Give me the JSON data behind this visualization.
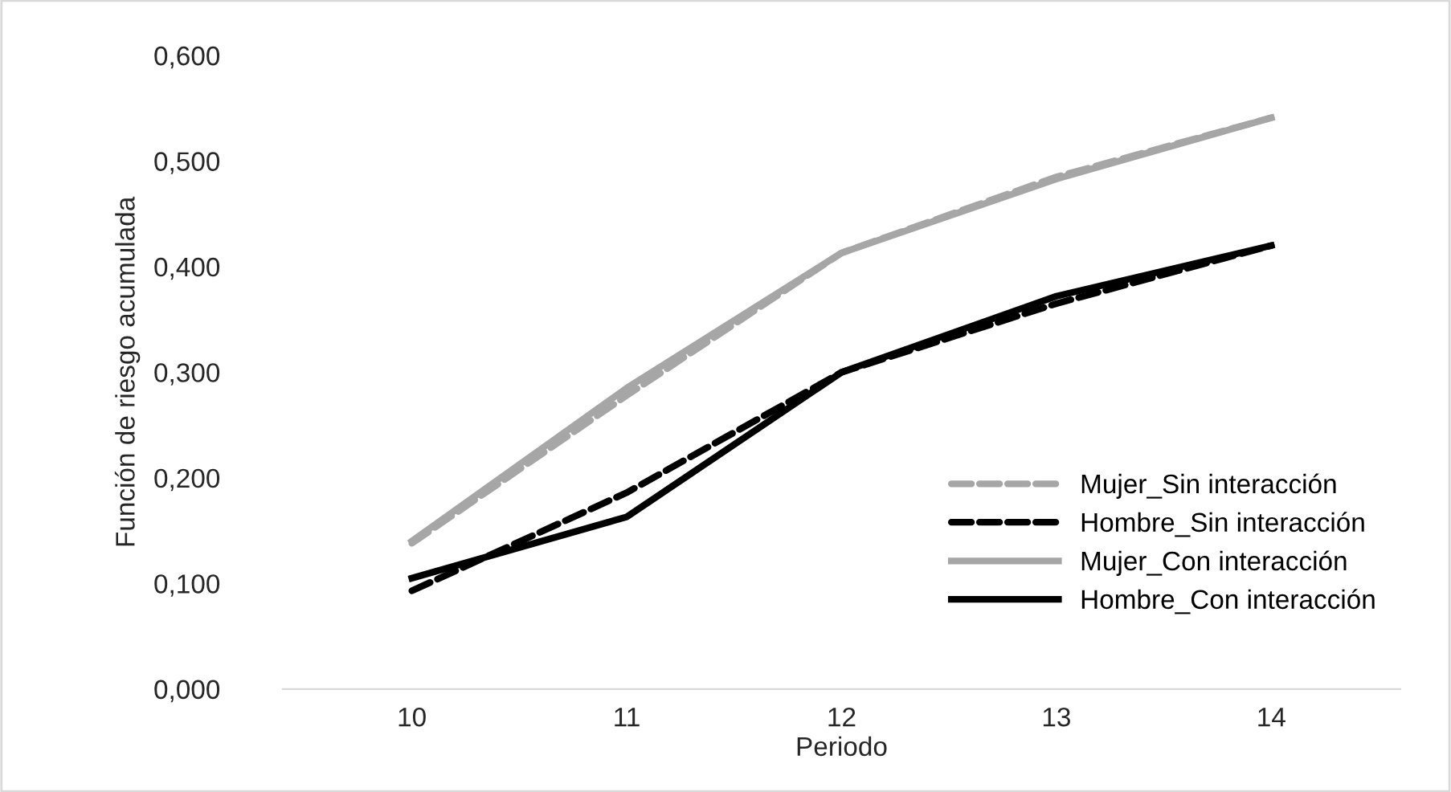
{
  "chart_data": {
    "type": "line",
    "xlabel": "Periodo",
    "ylabel": "Función de riesgo acumulada",
    "categories": [
      "10",
      "11",
      "12",
      "13",
      "14"
    ],
    "series": [
      {
        "name": "Mujer_Sin interacción",
        "color": "#a6a6a6",
        "line_style": "dashed",
        "values": [
          0.138,
          0.278,
          0.413,
          0.485,
          0.541
        ]
      },
      {
        "name": "Hombre_Sin interacción",
        "color": "#000000",
        "line_style": "dashed",
        "values": [
          0.093,
          0.186,
          0.3,
          0.365,
          0.42
        ]
      },
      {
        "name": "Mujer_Con interacción",
        "color": "#a6a6a6",
        "line_style": "solid",
        "values": [
          0.14,
          0.285,
          0.413,
          0.483,
          0.541
        ]
      },
      {
        "name": "Hombre_Con interacción",
        "color": "#000000",
        "line_style": "solid",
        "values": [
          0.105,
          0.163,
          0.3,
          0.372,
          0.42
        ]
      }
    ],
    "ylim": [
      0,
      0.6
    ],
    "yticks": [
      {
        "value": 0,
        "label": "0,000"
      },
      {
        "value": 0.1,
        "label": "0,100"
      },
      {
        "value": 0.2,
        "label": "0,200"
      },
      {
        "value": 0.3,
        "label": "0,300"
      },
      {
        "value": 0.4,
        "label": "0,400"
      },
      {
        "value": 0.5,
        "label": "0,500"
      },
      {
        "value": 0.6,
        "label": "0,600"
      }
    ],
    "grid": false,
    "legend": "lower right",
    "marker": "none"
  }
}
